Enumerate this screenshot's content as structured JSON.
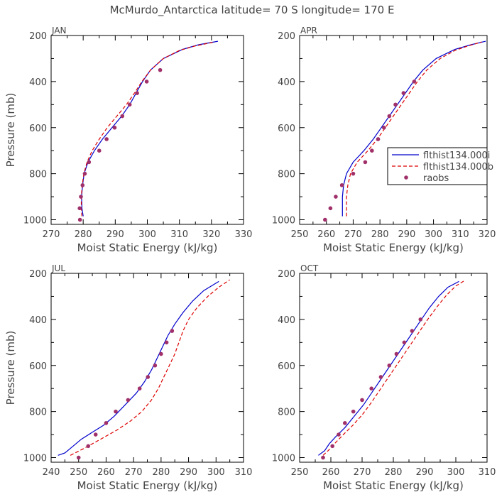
{
  "figure": {
    "title": "McMurdo_Antarctica  latitude= 70 S longitude= 170 E"
  },
  "legend": {
    "entries": [
      {
        "label": "flthist134.000i",
        "style": "solid",
        "color": "#0000cc"
      },
      {
        "label": "flthist134.000b",
        "style": "dashed",
        "color": "#dd0000"
      },
      {
        "label": "raobs",
        "style": "dot",
        "color": "#a0306a"
      }
    ],
    "panel": "APR",
    "placement": "center-right"
  },
  "colors": {
    "model_i": "#0000cc",
    "model_b": "#dd0000",
    "raobs": "#a0306a"
  },
  "chart_data": [
    {
      "type": "line",
      "title": "JAN",
      "xlabel": "Moist Static Energy (kJ/kg)",
      "ylabel": "Pressure (mb)",
      "xlim": [
        270,
        330
      ],
      "ylim": [
        1020,
        200
      ],
      "xticks": [
        270,
        280,
        290,
        300,
        310,
        320,
        330
      ],
      "yticks": [
        200,
        400,
        600,
        800,
        1000
      ],
      "series": [
        {
          "name": "flthist134.000i",
          "style": "solid",
          "points": [
            [
              280.0,
              985
            ],
            [
              279.6,
              950
            ],
            [
              279.5,
              900
            ],
            [
              279.8,
              850
            ],
            [
              280.3,
              800
            ],
            [
              281.5,
              750
            ],
            [
              283.5,
              700
            ],
            [
              286,
              650
            ],
            [
              289,
              600
            ],
            [
              292,
              550
            ],
            [
              294.5,
              500
            ],
            [
              296.5,
              450
            ],
            [
              298.5,
              400
            ],
            [
              301,
              350
            ],
            [
              305,
              300
            ],
            [
              311,
              260
            ],
            [
              316,
              240
            ],
            [
              322,
              225
            ]
          ]
        },
        {
          "name": "flthist134.000b",
          "style": "dashed",
          "points": [
            [
              279.6,
              985
            ],
            [
              279.4,
              950
            ],
            [
              279.4,
              900
            ],
            [
              279.7,
              850
            ],
            [
              280.2,
              800
            ],
            [
              281.2,
              750
            ],
            [
              282.8,
              700
            ],
            [
              285,
              650
            ],
            [
              287.5,
              600
            ],
            [
              290.5,
              550
            ],
            [
              293.5,
              500
            ],
            [
              296,
              450
            ],
            [
              298.3,
              400
            ],
            [
              301,
              350
            ],
            [
              305,
              300
            ],
            [
              310,
              265
            ],
            [
              315,
              245
            ],
            [
              321,
              228
            ]
          ]
        },
        {
          "name": "raobs",
          "style": "dot",
          "points": [
            [
              279.0,
              1000
            ],
            [
              278.9,
              950
            ],
            [
              279.3,
              900
            ],
            [
              279.8,
              850
            ],
            [
              280.5,
              800
            ],
            [
              281.8,
              750
            ],
            [
              285,
              700
            ],
            [
              287.3,
              650
            ],
            [
              289.8,
              600
            ],
            [
              292.2,
              550
            ],
            [
              294.5,
              500
            ],
            [
              296.8,
              450
            ],
            [
              299.8,
              400
            ],
            [
              304,
              350
            ]
          ]
        }
      ]
    },
    {
      "type": "line",
      "title": "APR",
      "xlabel": "Moist Static Energy (kJ/kg)",
      "ylabel": "",
      "xlim": [
        250,
        320
      ],
      "ylim": [
        1020,
        200
      ],
      "xticks": [
        250,
        260,
        270,
        280,
        290,
        300,
        310,
        320
      ],
      "yticks": [
        200,
        400,
        600,
        800,
        1000
      ],
      "series": [
        {
          "name": "flthist134.000i",
          "style": "solid",
          "points": [
            [
              266,
              985
            ],
            [
              266,
              900
            ],
            [
              266.4,
              850
            ],
            [
              267.5,
              800
            ],
            [
              270,
              750
            ],
            [
              274,
              700
            ],
            [
              277.5,
              650
            ],
            [
              280.5,
              600
            ],
            [
              283.5,
              550
            ],
            [
              286.5,
              500
            ],
            [
              289.5,
              450
            ],
            [
              292.5,
              400
            ],
            [
              296,
              350
            ],
            [
              301,
              300
            ],
            [
              308,
              260
            ],
            [
              314,
              240
            ],
            [
              319.5,
              225
            ]
          ]
        },
        {
          "name": "flthist134.000b",
          "style": "dashed",
          "points": [
            [
              267.5,
              985
            ],
            [
              267.5,
              900
            ],
            [
              268,
              850
            ],
            [
              269,
              800
            ],
            [
              271.5,
              750
            ],
            [
              275.5,
              700
            ],
            [
              279,
              650
            ],
            [
              282,
              600
            ],
            [
              285,
              550
            ],
            [
              288,
              500
            ],
            [
              291,
              450
            ],
            [
              294,
              400
            ],
            [
              297.5,
              350
            ],
            [
              302.5,
              300
            ],
            [
              308,
              265
            ],
            [
              313,
              245
            ],
            [
              318,
              228
            ]
          ]
        },
        {
          "name": "raobs",
          "style": "dot",
          "points": [
            [
              259.5,
              1000
            ],
            [
              261.5,
              950
            ],
            [
              263.5,
              900
            ],
            [
              265.8,
              850
            ],
            [
              270,
              800
            ],
            [
              274.5,
              750
            ],
            [
              277,
              700
            ],
            [
              279.3,
              650
            ],
            [
              281.5,
              600
            ],
            [
              283.5,
              550
            ],
            [
              285.8,
              500
            ],
            [
              288.8,
              450
            ],
            [
              292.8,
              400
            ]
          ]
        }
      ]
    },
    {
      "type": "line",
      "title": "JUL",
      "xlabel": "Moist Static Energy (kJ/kg)",
      "ylabel": "Pressure (mb)",
      "xlim": [
        240,
        310
      ],
      "ylim": [
        1020,
        200
      ],
      "xticks": [
        240,
        250,
        260,
        270,
        280,
        290,
        300,
        310
      ],
      "yticks": [
        200,
        400,
        600,
        800,
        1000
      ],
      "series": [
        {
          "name": "flthist134.000i",
          "style": "solid",
          "points": [
            [
              242.5,
              990
            ],
            [
              245,
              980
            ],
            [
              248,
              950
            ],
            [
              251,
              920
            ],
            [
              255,
              890
            ],
            [
              259,
              860
            ],
            [
              263,
              820
            ],
            [
              267,
              770
            ],
            [
              271,
              720
            ],
            [
              274,
              670
            ],
            [
              276.5,
              620
            ],
            [
              278.5,
              570
            ],
            [
              280.5,
              520
            ],
            [
              282.5,
              470
            ],
            [
              285,
              420
            ],
            [
              288,
              370
            ],
            [
              291.5,
              320
            ],
            [
              295.5,
              275
            ],
            [
              301,
              235
            ]
          ]
        },
        {
          "name": "flthist134.000b",
          "style": "dashed",
          "points": [
            [
              247,
              990
            ],
            [
              252,
              960
            ],
            [
              258,
              920
            ],
            [
              264,
              880
            ],
            [
              269,
              840
            ],
            [
              273,
              800
            ],
            [
              276.5,
              750
            ],
            [
              279,
              700
            ],
            [
              281,
              650
            ],
            [
              283,
              600
            ],
            [
              285,
              550
            ],
            [
              286.5,
              500
            ],
            [
              288,
              450
            ],
            [
              290,
              400
            ],
            [
              293,
              350
            ],
            [
              297,
              300
            ],
            [
              301,
              260
            ],
            [
              305,
              228
            ]
          ]
        },
        {
          "name": "raobs",
          "style": "dot",
          "points": [
            [
              250,
              1000
            ],
            [
              253.5,
              950
            ],
            [
              256.2,
              900
            ],
            [
              260,
              850
            ],
            [
              263.5,
              800
            ],
            [
              268,
              750
            ],
            [
              272.2,
              700
            ],
            [
              275.2,
              650
            ],
            [
              277.8,
              600
            ],
            [
              280,
              550
            ],
            [
              282,
              500
            ],
            [
              284,
              450
            ]
          ]
        }
      ]
    },
    {
      "type": "line",
      "title": "OCT",
      "xlabel": "Moist Static Energy (kJ/kg)",
      "ylabel": "",
      "xlim": [
        250,
        310
      ],
      "ylim": [
        1020,
        200
      ],
      "xticks": [
        250,
        260,
        270,
        280,
        290,
        300,
        310
      ],
      "yticks": [
        200,
        400,
        600,
        800,
        1000
      ],
      "series": [
        {
          "name": "flthist134.000i",
          "style": "solid",
          "points": [
            [
              256,
              990
            ],
            [
              258,
              970
            ],
            [
              259.5,
              940
            ],
            [
              261.5,
              910
            ],
            [
              264.5,
              870
            ],
            [
              267.5,
              820
            ],
            [
              270.5,
              770
            ],
            [
              273.5,
              710
            ],
            [
              276.5,
              650
            ],
            [
              279.5,
              590
            ],
            [
              282.5,
              530
            ],
            [
              285.5,
              470
            ],
            [
              288.5,
              410
            ],
            [
              291.5,
              350
            ],
            [
              294.5,
              300
            ],
            [
              297.5,
              260
            ],
            [
              301,
              235
            ]
          ]
        },
        {
          "name": "flthist134.000b",
          "style": "dashed",
          "points": [
            [
              257.5,
              990
            ],
            [
              259.5,
              965
            ],
            [
              261.5,
              935
            ],
            [
              264,
              900
            ],
            [
              267,
              860
            ],
            [
              270,
              815
            ],
            [
              273,
              760
            ],
            [
              276,
              700
            ],
            [
              279,
              640
            ],
            [
              282,
              580
            ],
            [
              285,
              520
            ],
            [
              288,
              460
            ],
            [
              291,
              400
            ],
            [
              294,
              345
            ],
            [
              297,
              295
            ],
            [
              300,
              255
            ],
            [
              303,
              230
            ]
          ]
        },
        {
          "name": "raobs",
          "style": "dot",
          "points": [
            [
              257.5,
              1000
            ],
            [
              260.5,
              950
            ],
            [
              262.5,
              900
            ],
            [
              264.5,
              850
            ],
            [
              267.2,
              800
            ],
            [
              270,
              750
            ],
            [
              273,
              700
            ],
            [
              276,
              650
            ],
            [
              278.7,
              600
            ],
            [
              281,
              550
            ],
            [
              283.5,
              500
            ],
            [
              286,
              450
            ],
            [
              288.7,
              400
            ]
          ]
        }
      ]
    }
  ]
}
